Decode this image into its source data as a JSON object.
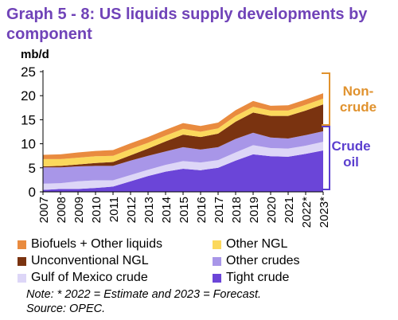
{
  "header": {
    "title": "Graph 5 - 8: US liquids supply developments by component"
  },
  "unit_label": "mb/d",
  "annotations": {
    "non_crude": [
      "Non-",
      "crude"
    ],
    "crude_oil": [
      "Crude",
      "oil"
    ]
  },
  "colors": {
    "title": "#7043b8",
    "biofuels": "#e98b3f",
    "other_ngl": "#fbd85c",
    "unconventional_ngl": "#7a3310",
    "other_crudes": "#a896e8",
    "gulf_of_mexico": "#ddd6f7",
    "tight_crude": "#6b45d8",
    "non_crude_bracket": "#e0922e",
    "crude_bracket": "#5b3fcf"
  },
  "chart_data": {
    "type": "area",
    "stacked": true,
    "x": [
      "2007",
      "2008",
      "2009",
      "2010",
      "2011",
      "2012",
      "2013",
      "2014",
      "2015",
      "2016",
      "2017",
      "2018",
      "2019",
      "2020",
      "2021",
      "2022*",
      "2023*"
    ],
    "ylim": [
      0,
      25
    ],
    "yticks": [
      0,
      5,
      10,
      15,
      20,
      25
    ],
    "grid": false,
    "legend_position": "bottom",
    "series": [
      {
        "name": "Tight crude",
        "color_key": "tight_crude",
        "values": [
          0.4,
          0.6,
          0.6,
          0.8,
          1.1,
          2.2,
          3.3,
          4.2,
          4.8,
          4.5,
          5.0,
          6.5,
          7.8,
          7.4,
          7.3,
          7.9,
          8.6
        ]
      },
      {
        "name": "Gulf of Mexico crude",
        "color_key": "gulf_of_mexico",
        "values": [
          1.3,
          1.2,
          1.6,
          1.6,
          1.3,
          1.3,
          1.3,
          1.4,
          1.6,
          1.6,
          1.6,
          1.7,
          1.9,
          1.7,
          1.7,
          1.7,
          1.8
        ]
      },
      {
        "name": "Other crudes",
        "color_key": "other_crudes",
        "values": [
          3.4,
          3.3,
          3.1,
          3.0,
          3.0,
          3.0,
          2.9,
          2.8,
          2.9,
          2.7,
          2.7,
          2.8,
          2.6,
          2.2,
          2.1,
          2.2,
          2.2
        ]
      },
      {
        "name": "Unconventional NGL",
        "color_key": "unconventional_ngl",
        "values": [
          0.2,
          0.3,
          0.4,
          0.6,
          0.8,
          1.1,
          1.5,
          2.1,
          2.6,
          2.6,
          2.8,
          3.6,
          4.2,
          4.5,
          4.7,
          5.1,
          5.6
        ]
      },
      {
        "name": "Other NGL",
        "color_key": "other_ngl",
        "values": [
          1.5,
          1.4,
          1.4,
          1.4,
          1.3,
          1.3,
          1.2,
          1.2,
          1.2,
          1.1,
          1.1,
          1.2,
          1.2,
          1.1,
          1.1,
          1.2,
          1.2
        ]
      },
      {
        "name": "Biofuels + Other liquids",
        "color_key": "biofuels",
        "values": [
          0.9,
          1.0,
          1.1,
          1.1,
          1.2,
          1.2,
          1.2,
          1.2,
          1.2,
          1.2,
          1.2,
          1.2,
          1.2,
          1.0,
          1.1,
          1.1,
          1.1
        ]
      }
    ]
  },
  "legend": [
    {
      "label": "Biofuels + Other liquids",
      "color_key": "biofuels"
    },
    {
      "label": "Other NGL",
      "color_key": "other_ngl"
    },
    {
      "label": "Unconventional NGL",
      "color_key": "unconventional_ngl"
    },
    {
      "label": "Other crudes",
      "color_key": "other_crudes"
    },
    {
      "label": "Gulf of Mexico crude",
      "color_key": "gulf_of_mexico"
    },
    {
      "label": "Tight crude",
      "color_key": "tight_crude"
    }
  ],
  "notes": {
    "line1": "Note: * 2022 = Estimate and 2023 = Forecast.",
    "line2": "Source: OPEC."
  }
}
